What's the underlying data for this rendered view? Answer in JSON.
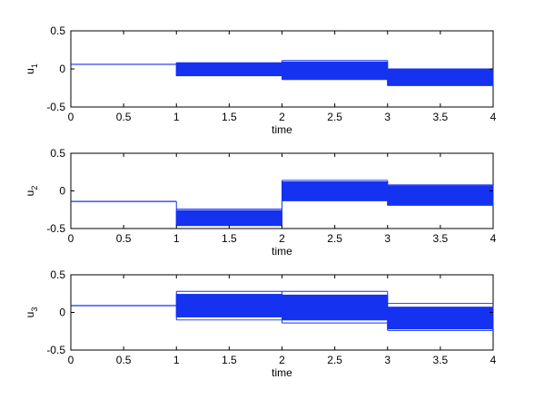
{
  "chart_data": [
    {
      "type": "line",
      "ylabel": "u",
      "ylabel_sub": "1",
      "xlabel": "time",
      "xlim": [
        0,
        4
      ],
      "ylim": [
        -0.5,
        0.5
      ],
      "xticks": [
        "0",
        "0.5",
        "1",
        "1.5",
        "2",
        "2.5",
        "3",
        "3.5",
        "4"
      ],
      "yticks": [
        "-0.5",
        "0",
        "0.5"
      ],
      "grid": false,
      "line_color": "#1432f0",
      "segments": [
        {
          "x": [
            0,
            1
          ],
          "band": [
            0.06,
            0.06
          ],
          "outliers": []
        },
        {
          "x": [
            1,
            2
          ],
          "band": [
            -0.09,
            0.08
          ],
          "outliers": [
            -0.09,
            0.08
          ]
        },
        {
          "x": [
            2,
            3
          ],
          "band": [
            -0.13,
            0.09
          ],
          "outliers": [
            0.11,
            -0.14
          ]
        },
        {
          "x": [
            3,
            4
          ],
          "band": [
            -0.21,
            0.0
          ],
          "outliers": [
            0.0,
            -0.22
          ]
        }
      ]
    },
    {
      "type": "line",
      "ylabel": "u",
      "ylabel_sub": "2",
      "xlabel": "time",
      "xlim": [
        0,
        4
      ],
      "ylim": [
        -0.5,
        0.5
      ],
      "xticks": [
        "0",
        "0.5",
        "1",
        "1.5",
        "2",
        "2.5",
        "3",
        "3.5",
        "4"
      ],
      "yticks": [
        "-0.5",
        "0",
        "0.5"
      ],
      "grid": false,
      "line_color": "#1432f0",
      "segments": [
        {
          "x": [
            0,
            1
          ],
          "band": [
            -0.14,
            -0.14
          ],
          "outliers": []
        },
        {
          "x": [
            1,
            2
          ],
          "band": [
            -0.46,
            -0.26
          ],
          "outliers": [
            -0.46,
            -0.24
          ]
        },
        {
          "x": [
            2,
            3
          ],
          "band": [
            -0.13,
            0.12
          ],
          "outliers": [
            -0.13,
            0.14
          ]
        },
        {
          "x": [
            3,
            4
          ],
          "band": [
            -0.19,
            0.07
          ],
          "outliers": [
            -0.19,
            0.08
          ]
        }
      ]
    },
    {
      "type": "line",
      "ylabel": "u",
      "ylabel_sub": "3",
      "xlabel": "time",
      "xlim": [
        0,
        4
      ],
      "ylim": [
        -0.5,
        0.5
      ],
      "xticks": [
        "0",
        "0.5",
        "1",
        "1.5",
        "2",
        "2.5",
        "3",
        "3.5",
        "4"
      ],
      "yticks": [
        "-0.5",
        "0",
        "0.5"
      ],
      "grid": false,
      "line_color": "#1432f0",
      "segments": [
        {
          "x": [
            0,
            1
          ],
          "band": [
            0.09,
            0.09
          ],
          "outliers": []
        },
        {
          "x": [
            1,
            2
          ],
          "band": [
            -0.06,
            0.24
          ],
          "outliers": [
            -0.1,
            0.28
          ]
        },
        {
          "x": [
            2,
            3
          ],
          "band": [
            -0.1,
            0.23
          ],
          "outliers": [
            -0.14,
            0.28
          ]
        },
        {
          "x": [
            3,
            4
          ],
          "band": [
            -0.22,
            0.07
          ],
          "outliers": [
            -0.24,
            0.12
          ]
        }
      ]
    }
  ]
}
